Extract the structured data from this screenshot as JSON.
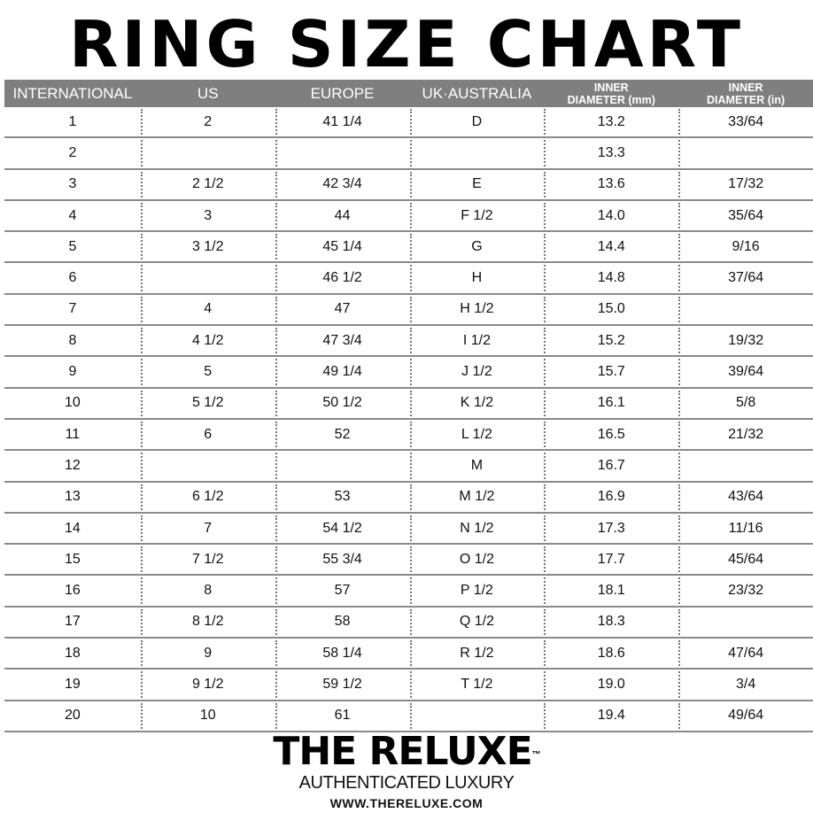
{
  "title": "RING SIZE CHART",
  "header": {
    "international": "INTERNATIONAL",
    "us": "US",
    "europe": "EUROPE",
    "uk": "UK·AUSTRALIA",
    "mm_line1": "INNER",
    "mm_line2": "DIAMETER (mm)",
    "in_line1": "INNER",
    "in_line2": "DIAMETER (in)"
  },
  "rows": [
    [
      "1",
      "2",
      "41 1/4",
      "D",
      "13.2",
      "33/64"
    ],
    [
      "2",
      "",
      "",
      "",
      "13.3",
      ""
    ],
    [
      "3",
      "2 1/2",
      "42 3/4",
      "E",
      "13.6",
      "17/32"
    ],
    [
      "4",
      "3",
      "44",
      "F 1/2",
      "14.0",
      "35/64"
    ],
    [
      "5",
      "3 1/2",
      "45 1/4",
      "G",
      "14.4",
      "9/16"
    ],
    [
      "6",
      "",
      "46 1/2",
      "H",
      "14.8",
      "37/64"
    ],
    [
      "7",
      "4",
      "47",
      "H 1/2",
      "15.0",
      ""
    ],
    [
      "8",
      "4 1/2",
      "47 3/4",
      "I 1/2",
      "15.2",
      "19/32"
    ],
    [
      "9",
      "5",
      "49 1/4",
      "J 1/2",
      "15.7",
      "39/64"
    ],
    [
      "10",
      "5 1/2",
      "50 1/2",
      "K 1/2",
      "16.1",
      "5/8"
    ],
    [
      "11",
      "6",
      "52",
      "L 1/2",
      "16.5",
      "21/32"
    ],
    [
      "12",
      "",
      "",
      "M",
      "16.7",
      ""
    ],
    [
      "13",
      "6 1/2",
      "53",
      "M 1/2",
      "16.9",
      "43/64"
    ],
    [
      "14",
      "7",
      "54 1/2",
      "N 1/2",
      "17.3",
      "11/16"
    ],
    [
      "15",
      "7 1/2",
      "55 3/4",
      "O 1/2",
      "17.7",
      "45/64"
    ],
    [
      "16",
      "8",
      "57",
      "P 1/2",
      "18.1",
      "23/32"
    ],
    [
      "17",
      "8 1/2",
      "58",
      "Q 1/2",
      "18.3",
      ""
    ],
    [
      "18",
      "9",
      "58 1/4",
      "R 1/2",
      "18.6",
      "47/64"
    ],
    [
      "19",
      "9 1/2",
      "59 1/2",
      "T 1/2",
      "19.0",
      "3/4"
    ],
    [
      "20",
      "10",
      "61",
      "",
      "19.4",
      "49/64"
    ]
  ],
  "footer": {
    "brand": "THE RELUXE",
    "trademark": "™",
    "tagline": "AUTHENTICATED LUXURY",
    "url": "WWW.THERELUXE.COM"
  },
  "colors": {
    "header_bg": "#7f7f7f",
    "header_text": "#ffffff",
    "row_divider": "#8a8a8a"
  }
}
